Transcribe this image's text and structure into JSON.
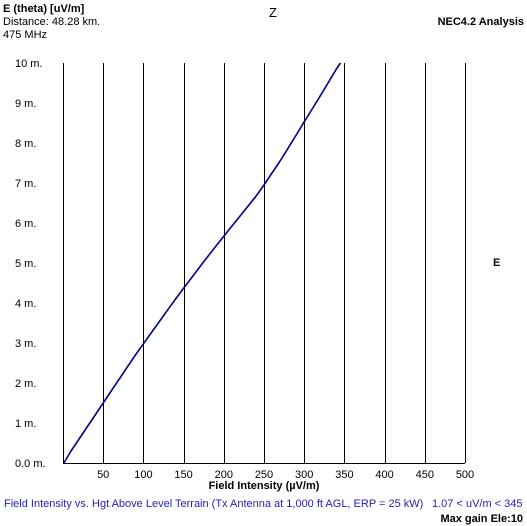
{
  "header": {
    "quantity": "E (theta) [uV/m]",
    "distance": "Distance: 48.28 km.",
    "frequency": "475 MHz",
    "axis_top": "Z",
    "analysis": "NEC4.2 Analysis",
    "axis_right": "E"
  },
  "footer": {
    "description": "Field Intensity vs. Hgt Above Level Terrain (Tx Antenna at 1,000 ft AGL, ERP = 25 kW)",
    "range": "1.07 < uV/m < 345",
    "max_gain": "Max gain Ele:10"
  },
  "colors": {
    "curve": "#00008b",
    "grid": "#000000",
    "footer_text": "#1f1fbf"
  },
  "chart_data": {
    "type": "line",
    "xlabel": "Field Intensity (µV/m)",
    "ylabel": "",
    "xlim": [
      0,
      500
    ],
    "ylim": [
      0,
      10
    ],
    "x_ticks": [
      50,
      100,
      150,
      200,
      250,
      300,
      350,
      400,
      450,
      500
    ],
    "x_tick_labels": [
      "50",
      "100",
      "150",
      "200",
      "250",
      "300",
      "350",
      "400",
      "450",
      "500"
    ],
    "y_ticks": [
      0,
      1,
      2,
      3,
      4,
      5,
      6,
      7,
      8,
      9,
      10
    ],
    "y_tick_labels": [
      "0.0 m.",
      "1 m.",
      "2 m.",
      "3 m.",
      "4 m.",
      "5 m.",
      "6 m.",
      "7 m.",
      "8 m.",
      "9 m.",
      "10 m."
    ],
    "grid": "vertical",
    "series": [
      {
        "x": [
          1.07,
          10,
          20,
          30,
          40,
          50,
          60,
          70,
          80,
          90,
          100,
          110,
          120,
          130,
          140,
          150,
          160,
          170,
          180,
          190,
          200,
          210,
          220,
          230,
          240,
          250,
          260,
          270,
          280,
          290,
          300,
          310,
          320,
          330,
          340,
          345
        ],
        "y": [
          0,
          0.3,
          0.6,
          0.9,
          1.2,
          1.5,
          1.8,
          2.1,
          2.4,
          2.7,
          2.98,
          3.26,
          3.54,
          3.82,
          4.1,
          4.37,
          4.63,
          4.9,
          5.16,
          5.42,
          5.67,
          5.92,
          6.17,
          6.42,
          6.67,
          6.95,
          7.25,
          7.55,
          7.87,
          8.2,
          8.53,
          8.85,
          9.18,
          9.51,
          9.85,
          10.0
        ]
      }
    ]
  }
}
